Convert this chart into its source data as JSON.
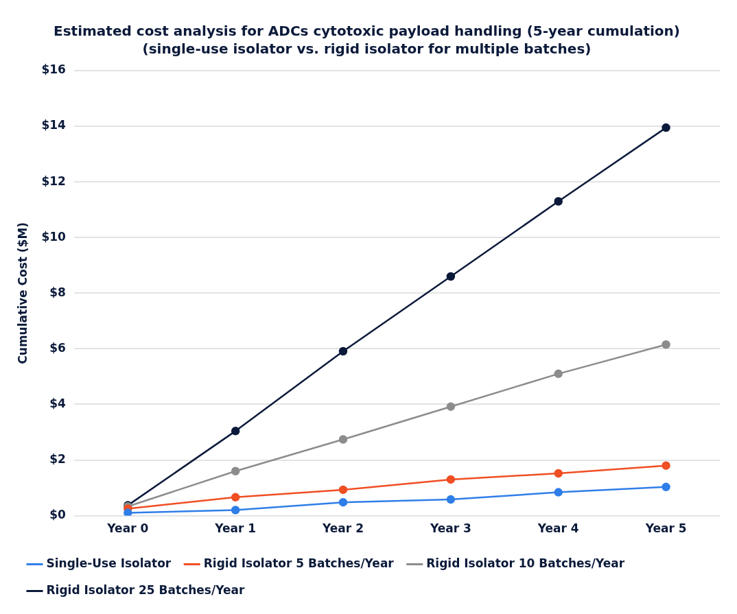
{
  "chart_data": {
    "type": "line",
    "title": "Estimated cost analysis for ADCs cytotoxic payload handling (5-year cumulation)",
    "subtitle": "(single-use isolator vs. rigid isolator for multiple batches)",
    "ylabel": "Cumulative Cost ($M)",
    "categories": [
      "Year 0",
      "Year 1",
      "Year 2",
      "Year 3",
      "Year 4",
      "Year 5"
    ],
    "series": [
      {
        "name": "Single-Use Isolator",
        "color": "#2f7ee8",
        "values": [
          0.1,
          0.2,
          0.48,
          0.58,
          0.84,
          1.03
        ]
      },
      {
        "name": "Rigid Isolator 5 Batches/Year",
        "color": "#f04e23",
        "values": [
          0.25,
          0.66,
          0.93,
          1.3,
          1.52,
          1.8
        ]
      },
      {
        "name": "Rigid Isolator 10 Batches/Year",
        "color": "#8c8c8c",
        "values": [
          0.33,
          1.6,
          2.74,
          3.92,
          5.1,
          6.15
        ]
      },
      {
        "name": "Rigid Isolator 25 Batches/Year",
        "color": "#0b1a3a",
        "values": [
          0.37,
          3.04,
          5.91,
          8.6,
          11.3,
          13.95
        ]
      }
    ],
    "ylim": [
      0,
      16
    ],
    "yticks": [
      {
        "value": 0,
        "label": "$0"
      },
      {
        "value": 2,
        "label": "$2"
      },
      {
        "value": 4,
        "label": "$4"
      },
      {
        "value": 6,
        "label": "$6"
      },
      {
        "value": 8,
        "label": "$8"
      },
      {
        "value": 10,
        "label": "$10"
      },
      {
        "value": 12,
        "label": "$12"
      },
      {
        "value": 14,
        "label": "$14"
      },
      {
        "value": 16,
        "label": "$16"
      }
    ],
    "grid": "y",
    "legend": "bottom",
    "marker": "circle",
    "line_style": "solid"
  }
}
